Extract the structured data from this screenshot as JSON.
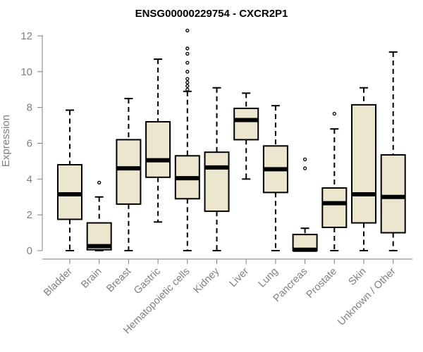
{
  "chart_data": {
    "type": "boxplot",
    "title": "ENSG00000229754 - CXCR2P1",
    "xlabel": "",
    "ylabel": "Expression",
    "ylim": [
      0,
      12.4
    ],
    "yticks": [
      0,
      2,
      4,
      6,
      8,
      10,
      12
    ],
    "box_color": "#ede6cf",
    "categories": [
      "Bladder",
      "Brain",
      "Breast",
      "Gastric",
      "Hematopoietic cells",
      "Kidney",
      "Liver",
      "Lung",
      "Pancreas",
      "Prostate",
      "Skin",
      "Unknown / Other"
    ],
    "boxes": [
      {
        "category": "Bladder",
        "min": 0,
        "q1": 1.75,
        "median": 3.15,
        "q3": 4.8,
        "max": 7.85,
        "outliers": []
      },
      {
        "category": "Brain",
        "min": 0,
        "q1": 0.05,
        "median": 0.25,
        "q3": 1.55,
        "max": 3.0,
        "outliers": [
          3.8
        ]
      },
      {
        "category": "Breast",
        "min": 0,
        "q1": 2.6,
        "median": 4.6,
        "q3": 6.2,
        "max": 8.5,
        "outliers": []
      },
      {
        "category": "Gastric",
        "min": 1.6,
        "q1": 4.1,
        "median": 5.05,
        "q3": 7.2,
        "max": 10.7,
        "outliers": []
      },
      {
        "category": "Hematopoietic cells",
        "min": 0,
        "q1": 2.9,
        "median": 4.05,
        "q3": 5.3,
        "max": 8.9,
        "outliers": [
          9.0,
          9.2,
          9.4,
          9.6,
          10.0,
          10.5,
          11.0,
          11.3,
          12.3
        ]
      },
      {
        "category": "Kidney",
        "min": 0,
        "q1": 2.2,
        "median": 4.65,
        "q3": 5.5,
        "max": 9.1,
        "outliers": []
      },
      {
        "category": "Liver",
        "min": 4.0,
        "q1": 6.2,
        "median": 7.3,
        "q3": 7.95,
        "max": 8.8,
        "outliers": []
      },
      {
        "category": "Lung",
        "min": 0,
        "q1": 3.25,
        "median": 4.55,
        "q3": 5.85,
        "max": 8.1,
        "outliers": []
      },
      {
        "category": "Pancreas",
        "min": 0,
        "q1": 0.0,
        "median": 0.05,
        "q3": 0.9,
        "max": 1.25,
        "outliers": [
          4.6,
          5.1
        ]
      },
      {
        "category": "Prostate",
        "min": 0,
        "q1": 1.3,
        "median": 2.65,
        "q3": 3.5,
        "max": 6.8,
        "outliers": [
          7.65
        ]
      },
      {
        "category": "Skin",
        "min": 0,
        "q1": 1.55,
        "median": 3.15,
        "q3": 8.15,
        "max": 9.1,
        "outliers": []
      },
      {
        "category": "Unknown / Other",
        "min": 0,
        "q1": 1.0,
        "median": 3.0,
        "q3": 5.35,
        "max": 11.1,
        "outliers": []
      }
    ]
  }
}
